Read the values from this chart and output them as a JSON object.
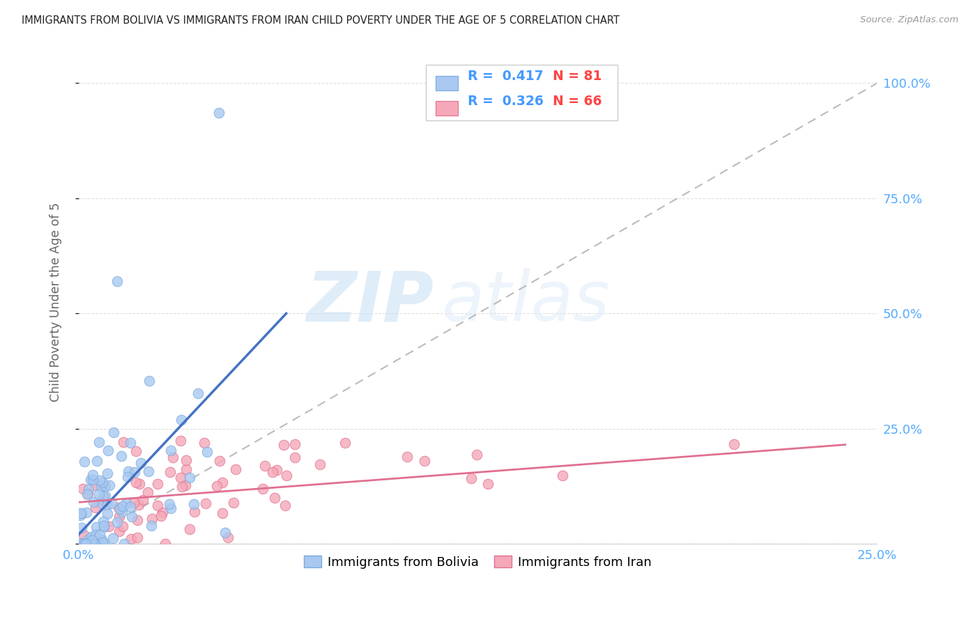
{
  "title": "IMMIGRANTS FROM BOLIVIA VS IMMIGRANTS FROM IRAN CHILD POVERTY UNDER THE AGE OF 5 CORRELATION CHART",
  "source": "Source: ZipAtlas.com",
  "ylabel": "Child Poverty Under the Age of 5",
  "xlim": [
    0.0,
    0.25
  ],
  "ylim": [
    0.0,
    1.05
  ],
  "bolivia_color": "#a8c8f0",
  "iran_color": "#f4a8b8",
  "bolivia_edge": "#7aaadd",
  "iran_edge": "#e07090",
  "bolivia_R": 0.417,
  "bolivia_N": 81,
  "iran_R": 0.326,
  "iran_N": 66,
  "bolivia_line_color": "#4472c4",
  "iran_line_color": "#e07090",
  "diagonal_color": "#bbbbbb",
  "watermark_zip": "ZIP",
  "watermark_atlas": "atlas",
  "title_color": "#222222",
  "axis_label_color": "#666666",
  "tick_color": "#55aaff",
  "legend_R_color": "#4499ff",
  "grid_color": "#e0e0e0",
  "bg_color": "#ffffff",
  "legend_N_color": "#ff4444"
}
